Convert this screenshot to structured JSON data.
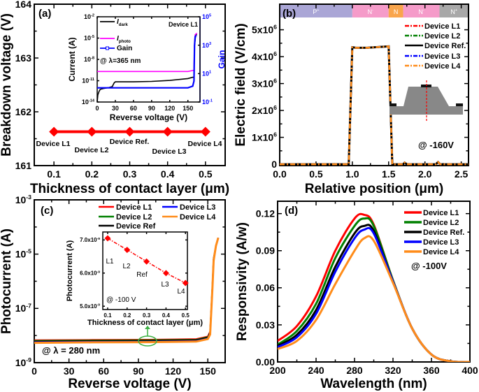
{
  "chart_data": [
    {
      "panel_label": "(a)",
      "type": "line",
      "x_title": "Thickness of contact layer (μm)",
      "y_title": "Breakdown voltage (V)",
      "xlim": [
        0.048,
        0.552
      ],
      "ylim": [
        161,
        164
      ],
      "xticks": [
        0.1,
        0.2,
        0.3,
        0.4,
        0.5
      ],
      "xtick_labels": [
        "0.1",
        "0.2",
        "0.3",
        "0.4",
        "0.5"
      ],
      "yticks": [
        161,
        162,
        163,
        164
      ],
      "ytick_labels": [
        "161",
        "162",
        "163",
        "164"
      ],
      "series": [
        {
          "x": [
            0.1,
            0.2,
            0.3,
            0.4,
            0.5
          ],
          "y": [
            161.63,
            161.63,
            161.63,
            161.63,
            161.63
          ],
          "color": "#ff0000",
          "marker": "diamond"
        }
      ],
      "point_labels": [
        "Device L1",
        "Device L2",
        "Device Ref.",
        "Device L3",
        "Device L4"
      ],
      "inset": {
        "type": "line",
        "x_title": "Reverse voltage (V)",
        "y_title": "Current (A)",
        "y2_title": "Gain",
        "xlim": [
          0,
          170
        ],
        "ylim": [
          1e-14,
          0.01
        ],
        "ylog": true,
        "y2lim": [
          0.1,
          100000
        ],
        "y2log": true,
        "xticks": [
          0,
          30,
          60,
          90,
          120,
          150
        ],
        "xtick_labels": [
          "0",
          "30",
          "60",
          "90",
          "120",
          "150"
        ],
        "yticks": [
          1e-14,
          1e-11,
          1e-08,
          1e-05,
          0.01
        ],
        "ytick_labels": [
          {
            "b": "10",
            "e": "-14"
          },
          {
            "b": "10",
            "e": "-11"
          },
          {
            "b": "10",
            "e": "-8"
          },
          {
            "b": "10",
            "e": "-5"
          },
          {
            "b": "10",
            "e": "-2"
          }
        ],
        "y2ticks": [
          0.1,
          10,
          1000,
          100000
        ],
        "y2tick_labels": [
          {
            "b": "10",
            "e": "-1"
          },
          {
            "b": "10",
            "e": "1"
          },
          {
            "b": "10",
            "e": "3"
          },
          {
            "b": "10",
            "e": "5"
          }
        ],
        "annotations": [
          "Device L1",
          "@ λ=365 nm"
        ],
        "series": [
          {
            "name": {
              "b": "I",
              "sub": "dark"
            },
            "color": "#000000",
            "axis": "left",
            "x": [
              0,
              1,
              3,
              5,
              10,
              20,
              25,
              28,
              30,
              60,
              90,
              120,
              150,
              158,
              160,
              161,
              163,
              165
            ],
            "y": [
              1e-14,
              1e-13,
              3e-13,
              6e-13,
              8e-13,
              1.1e-12,
              1.5e-12,
              5e-12,
              7e-12,
              7e-12,
              8e-12,
              1.1e-11,
              2e-11,
              3e-11,
              3e-11,
              1e-06,
              3e-05,
              3e-05
            ]
          },
          {
            "name": {
              "b": "I",
              "sub": "photo"
            },
            "color": "#ff00ff",
            "axis": "left",
            "x": [
              0,
              150,
              160,
              161,
              162,
              165
            ],
            "y": [
              2e-10,
              2e-10,
              3e-10,
              1e-06,
              3e-05,
              5e-05
            ]
          },
          {
            "name": {
              "b": "Gain"
            },
            "color": "#0000ff",
            "axis": "right",
            "marker": "square",
            "x": [
              0,
              150,
              158,
              160,
              161,
              162,
              164
            ],
            "y": [
              1,
              1,
              1.3,
              3,
              1000,
              4000,
              5000
            ]
          }
        ]
      }
    },
    {
      "panel_label": "(b)",
      "type": "line",
      "x_title": "Relative position (μm)",
      "y_title": "Electric field (V/cm)",
      "xlim": [
        0,
        2.6
      ],
      "ylim": [
        -50000,
        5950000
      ],
      "xticks": [
        0,
        0.5,
        1.0,
        1.5,
        2.0,
        2.5
      ],
      "xtick_labels": [
        "0.0",
        "0.5",
        "1.0",
        "1.5",
        "2.0",
        "2.5"
      ],
      "yticks": [
        0,
        1000000,
        2000000,
        3000000,
        4000000,
        5000000
      ],
      "ytick_labels": [
        "0",
        {
          "b": "1x10",
          "e": "6"
        },
        {
          "b": "2x10",
          "e": "6"
        },
        {
          "b": "3x10",
          "e": "6"
        },
        {
          "b": "4x10",
          "e": "6"
        },
        {
          "b": "5x10",
          "e": "6"
        }
      ],
      "annotation": "@ -160V",
      "layers": [
        {
          "label": {
            "b": "P",
            "e": "+"
          },
          "from": 0,
          "to": 1.0,
          "color": "#aaa6d6"
        },
        {
          "label": {
            "b": "N",
            "e": "-"
          },
          "from": 1.0,
          "to": 1.5,
          "color": "#f59bc9"
        },
        {
          "label": {
            "b": "N"
          },
          "from": 1.5,
          "to": 1.7,
          "color": "#f9a54c"
        },
        {
          "label": {
            "b": "N",
            "e": "-"
          },
          "from": 1.7,
          "to": 2.2,
          "color": "#f59bc9"
        },
        {
          "label": {
            "b": "N",
            "e": "+"
          },
          "from": 2.2,
          "to": 2.6,
          "color": "#a8a8a8"
        }
      ],
      "x": [
        0,
        0.95,
        1.0,
        1.05,
        1.2,
        1.5,
        1.55,
        1.7,
        1.72,
        1.75,
        2.15,
        2.18,
        2.21,
        2.6
      ],
      "series": [
        {
          "name": "Device L1",
          "color": "#ff0000",
          "dash": "dash-dot",
          "y": [
            0,
            0,
            4350000,
            4330000,
            4330000,
            4380000,
            0,
            0,
            60000,
            0,
            0,
            80000,
            0,
            0
          ]
        },
        {
          "name": "Device L2",
          "color": "#008000",
          "dash": "dash-dot",
          "y": [
            0,
            0,
            4350000,
            4330000,
            4330000,
            4380000,
            0,
            0,
            60000,
            0,
            0,
            80000,
            0,
            0
          ]
        },
        {
          "name": "Device Ref.",
          "color": "#000000",
          "dash": "solid",
          "y": [
            0,
            0,
            4350000,
            4330000,
            4330000,
            4380000,
            0,
            0,
            60000,
            0,
            0,
            80000,
            0,
            0
          ]
        },
        {
          "name": "Device L3",
          "color": "#0000ff",
          "dash": "dash-dot",
          "y": [
            0,
            0,
            4350000,
            4330000,
            4330000,
            4380000,
            0,
            0,
            60000,
            0,
            0,
            80000,
            0,
            0
          ]
        },
        {
          "name": "Device L4",
          "color": "#ff8c1a",
          "dash": "dash-dot",
          "y": [
            0,
            0,
            4350000,
            4330000,
            4330000,
            4380000,
            0,
            0,
            60000,
            0,
            0,
            80000,
            0,
            0
          ]
        }
      ]
    },
    {
      "panel_label": "(c)",
      "type": "line",
      "x_title": "Reverse voltage (V)",
      "y_title": "Photocurrent (A)",
      "xlim": [
        0,
        165
      ],
      "ylim": [
        1e-09,
        0.001
      ],
      "ylog": true,
      "xticks": [
        0,
        30,
        60,
        90,
        120,
        150
      ],
      "xtick_labels": [
        "0",
        "30",
        "60",
        "90",
        "120",
        "150"
      ],
      "yticks": [
        1e-09,
        1e-07,
        1e-05,
        0.001
      ],
      "ytick_labels": [
        {
          "b": "10",
          "e": "-9"
        },
        {
          "b": "10",
          "e": "-7"
        },
        {
          "b": "10",
          "e": "-5"
        },
        {
          "b": "10",
          "e": "-3"
        }
      ],
      "annotation": "@ λ = 280 nm",
      "x": [
        0,
        50,
        100,
        140,
        150,
        152,
        154,
        155,
        157,
        159
      ],
      "series": [
        {
          "name": "Device L1",
          "color": "#ff0000",
          "y": [
            6.7e-09,
            6.9e-09,
            7.05e-09,
            7.4e-09,
            9.2e-09,
            1.4e-08,
            7e-07,
            7e-06,
            2e-05,
            4e-05
          ]
        },
        {
          "name": "Device L2",
          "color": "#008000",
          "y": [
            6.4e-09,
            6.6e-09,
            6.7e-09,
            7e-09,
            8.7e-09,
            1.3e-08,
            6.7e-07,
            6.7e-06,
            2e-05,
            4e-05
          ]
        },
        {
          "name": "Device Ref",
          "color": "#000000",
          "y": [
            6e-09,
            6.2e-09,
            6.35e-09,
            6.7e-09,
            8.3e-09,
            1.3e-08,
            6.3e-07,
            6.3e-06,
            2e-05,
            4e-05
          ]
        },
        {
          "name": "Device L3",
          "color": "#0000ff",
          "y": [
            5.7e-09,
            5.9e-09,
            6e-09,
            6.3e-09,
            7.8e-09,
            1.2e-08,
            6e-07,
            6e-06,
            2e-05,
            4e-05
          ]
        },
        {
          "name": "Device L4",
          "color": "#ff8c1a",
          "y": [
            5.4e-09,
            5.6e-09,
            5.7e-09,
            6e-09,
            7.4e-09,
            1.1e-08,
            5.7e-07,
            5.7e-06,
            2e-05,
            4e-05
          ]
        }
      ],
      "highlight_color": "#3cb043",
      "inset": {
        "type": "line",
        "x_title": "Thickness of contact layer (μm)",
        "y_title": "Photocurrent (A)",
        "xlim": [
          0.075,
          0.51
        ],
        "ylim": [
          4.9e-09,
          7.24e-09
        ],
        "xticks": [
          0.1,
          0.2,
          0.3,
          0.4,
          0.5
        ],
        "xtick_labels": [
          "0.1",
          "0.2",
          "0.3",
          "0.4",
          "0.5"
        ],
        "yticks": [
          5e-09,
          6e-09,
          7e-09
        ],
        "ytick_labels": [
          {
            "b": "5.0x10",
            "e": "-9"
          },
          {
            "b": "6.0x10",
            "e": "-9"
          },
          {
            "b": "7.0x10",
            "e": "-9"
          }
        ],
        "annotation": "@ -100 V",
        "x": [
          0.1,
          0.2,
          0.3,
          0.4,
          0.5
        ],
        "y": [
          7.05e-09,
          6.7e-09,
          6.35e-09,
          6e-09,
          5.7e-09
        ],
        "point_labels": [
          "L1",
          "L2",
          "Ref",
          "L3",
          "L4"
        ],
        "color": "#ff0000",
        "marker": "diamond",
        "line": "dash-dot"
      }
    },
    {
      "panel_label": "(d)",
      "type": "line",
      "x_title": "Wavelength (nm)",
      "y_title": "Responsivity (A/w)",
      "xlim": [
        200,
        400
      ],
      "ylim": [
        0,
        0.13
      ],
      "xticks": [
        200,
        240,
        280,
        320,
        360,
        400
      ],
      "xtick_labels": [
        "200",
        "240",
        "280",
        "320",
        "360",
        "400"
      ],
      "yticks": [
        0,
        0.03,
        0.06,
        0.09,
        0.12
      ],
      "ytick_labels": [
        "0.00",
        "0.03",
        "0.06",
        "0.09",
        "0.12"
      ],
      "annotation": "@ -100V",
      "x": [
        200,
        220,
        240,
        260,
        280,
        290,
        300,
        320,
        340,
        360,
        380,
        400
      ],
      "series": [
        {
          "name": "Device L1",
          "color": "#ff0000",
          "y": [
            0.017,
            0.029,
            0.053,
            0.09,
            0.116,
            0.119,
            0.111,
            0.066,
            0.027,
            0.006,
            0.0005,
            0
          ]
        },
        {
          "name": "Device L2",
          "color": "#008000",
          "y": [
            0.014,
            0.025,
            0.047,
            0.084,
            0.11,
            0.116,
            0.11,
            0.066,
            0.027,
            0.006,
            0.0005,
            0
          ]
        },
        {
          "name": "Device Ref.",
          "color": "#000000",
          "y": [
            0.013,
            0.022,
            0.042,
            0.077,
            0.104,
            0.11,
            0.106,
            0.065,
            0.027,
            0.006,
            0.0005,
            0
          ]
        },
        {
          "name": "Device L3",
          "color": "#0000ff",
          "y": [
            0.012,
            0.02,
            0.039,
            0.073,
            0.1,
            0.107,
            0.104,
            0.065,
            0.027,
            0.006,
            0.0005,
            0
          ]
        },
        {
          "name": "Device L4",
          "color": "#ff8c1a",
          "y": [
            0.0105,
            0.017,
            0.034,
            0.063,
            0.09,
            0.1,
            0.098,
            0.064,
            0.027,
            0.006,
            0.0005,
            0
          ]
        }
      ]
    }
  ]
}
